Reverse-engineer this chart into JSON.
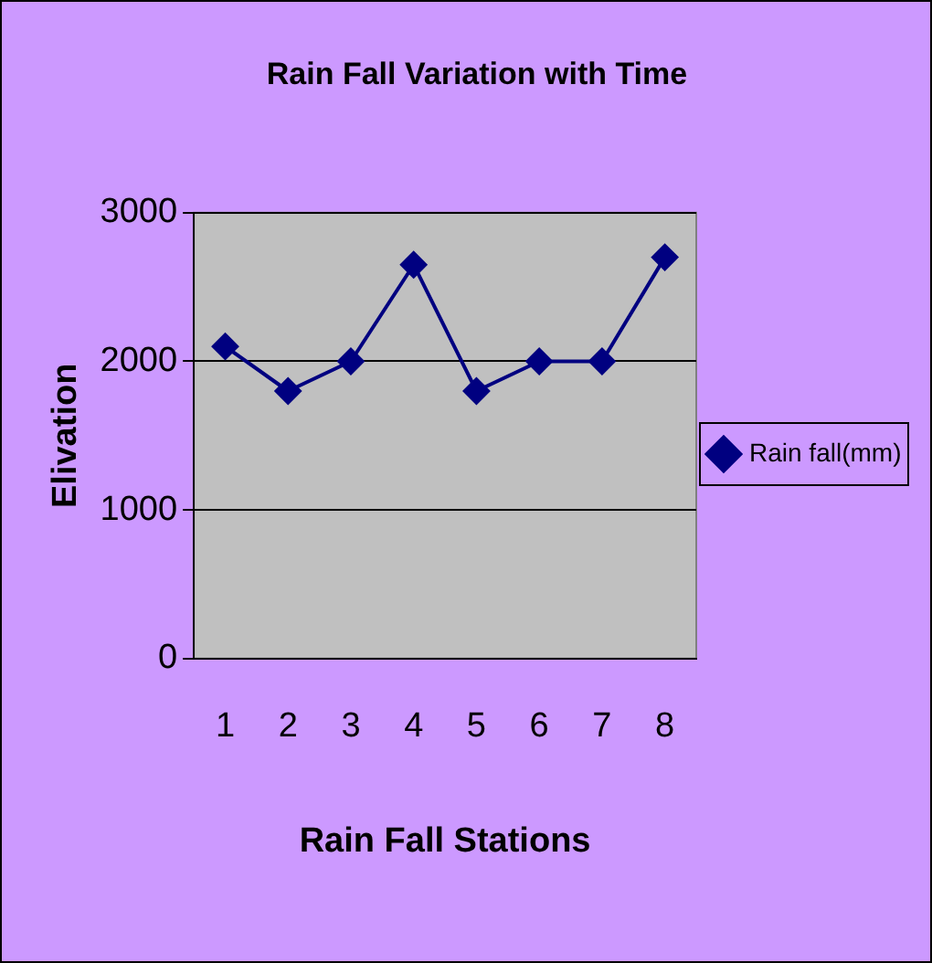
{
  "chart_data": {
    "type": "line",
    "title": "Rain Fall Variation with Time",
    "xlabel": "Rain Fall Stations",
    "ylabel": "Elivation",
    "categories": [
      "1",
      "2",
      "3",
      "4",
      "5",
      "6",
      "7",
      "8"
    ],
    "series": [
      {
        "name": "Rain fall(mm)",
        "color": "#000080",
        "values": [
          2100,
          1800,
          2000,
          2650,
          1800,
          2000,
          2000,
          2700
        ]
      }
    ],
    "ylim": [
      0,
      3000
    ],
    "yticks": [
      0,
      1000,
      2000,
      3000
    ],
    "grid": "y",
    "legend": "right",
    "marker": "diamond",
    "line_style": "solid"
  }
}
